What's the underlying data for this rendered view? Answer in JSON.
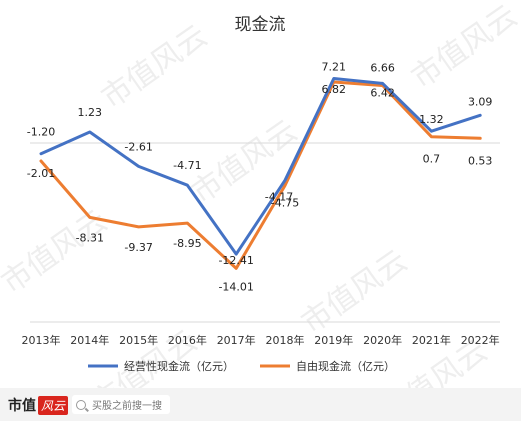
{
  "chart_data": {
    "type": "line",
    "title": "现金流",
    "categories": [
      "2013年",
      "2014年",
      "2015年",
      "2016年",
      "2017年",
      "2018年",
      "2019年",
      "2020年",
      "2021年",
      "2022年"
    ],
    "series": [
      {
        "name": "经营性现金流（亿元）",
        "color": "#4472c4",
        "values": [
          -1.2,
          1.23,
          -2.61,
          -4.71,
          -12.41,
          -4.17,
          7.21,
          6.66,
          1.32,
          3.09
        ],
        "labels": [
          "-1.20",
          "1.23",
          "-2.61",
          "-4.71",
          "-12.41",
          "-4.17",
          "7.21",
          "6.66",
          "1.32",
          "3.09"
        ]
      },
      {
        "name": "自由现金流（亿元）",
        "color": "#ed7d31",
        "values": [
          -2.01,
          -8.31,
          -9.37,
          -8.95,
          -14.01,
          -4.75,
          6.82,
          6.42,
          0.7,
          0.53
        ],
        "labels": [
          "-2.01",
          "-8.31",
          "-9.37",
          "-8.95",
          "-14.01",
          "-4.75",
          "6.82",
          "6.42",
          "0.7",
          "0.53"
        ]
      }
    ],
    "legend_position": "bottom",
    "grid": false
  },
  "watermark": "市值风云",
  "footer": {
    "brand_text": "市值",
    "brand_chip": "风云",
    "search_icon": "search-icon",
    "search_text": "买股之前搜一搜"
  }
}
